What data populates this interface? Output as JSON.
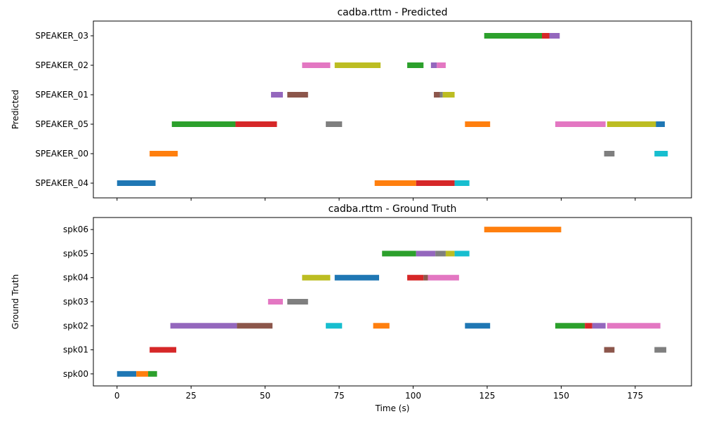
{
  "chart_data": [
    {
      "type": "bar",
      "orientation": "horizontal-timeline",
      "title": "cadba.rttm - Predicted",
      "xlabel": "",
      "ylabel": "Predicted",
      "xlim": [
        -8,
        194
      ],
      "xticks": [
        0,
        25,
        50,
        75,
        100,
        125,
        150,
        175
      ],
      "show_x_tick_labels": false,
      "categories": [
        "SPEAKER_04",
        "SPEAKER_00",
        "SPEAKER_05",
        "SPEAKER_01",
        "SPEAKER_02",
        "SPEAKER_03"
      ],
      "segments": [
        {
          "speaker": "SPEAKER_04",
          "start": 0.0,
          "end": 13.0,
          "color": "#1f77b4"
        },
        {
          "speaker": "SPEAKER_00",
          "start": 11.0,
          "end": 20.5,
          "color": "#ff7f0e"
        },
        {
          "speaker": "SPEAKER_05",
          "start": 18.5,
          "end": 40.0,
          "color": "#2ca02c"
        },
        {
          "speaker": "SPEAKER_05",
          "start": 40.0,
          "end": 54.0,
          "color": "#d62728"
        },
        {
          "speaker": "SPEAKER_01",
          "start": 52.0,
          "end": 56.0,
          "color": "#9467bd"
        },
        {
          "speaker": "SPEAKER_01",
          "start": 57.5,
          "end": 64.5,
          "color": "#8c564b"
        },
        {
          "speaker": "SPEAKER_02",
          "start": 62.5,
          "end": 72.0,
          "color": "#e377c2"
        },
        {
          "speaker": "SPEAKER_05",
          "start": 70.5,
          "end": 76.0,
          "color": "#7f7f7f"
        },
        {
          "speaker": "SPEAKER_02",
          "start": 73.5,
          "end": 89.0,
          "color": "#bcbd22"
        },
        {
          "speaker": "SPEAKER_04",
          "start": 87.0,
          "end": 101.0,
          "color": "#ff7f0e"
        },
        {
          "speaker": "SPEAKER_02",
          "start": 98.0,
          "end": 103.5,
          "color": "#2ca02c"
        },
        {
          "speaker": "SPEAKER_04",
          "start": 101.0,
          "end": 114.0,
          "color": "#d62728"
        },
        {
          "speaker": "SPEAKER_02",
          "start": 106.0,
          "end": 108.0,
          "color": "#9467bd"
        },
        {
          "speaker": "SPEAKER_01",
          "start": 107.0,
          "end": 109.0,
          "color": "#8c564b"
        },
        {
          "speaker": "SPEAKER_02",
          "start": 108.0,
          "end": 111.0,
          "color": "#e377c2"
        },
        {
          "speaker": "SPEAKER_01",
          "start": 109.0,
          "end": 110.0,
          "color": "#7f7f7f"
        },
        {
          "speaker": "SPEAKER_01",
          "start": 110.0,
          "end": 114.0,
          "color": "#bcbd22"
        },
        {
          "speaker": "SPEAKER_04",
          "start": 114.0,
          "end": 119.0,
          "color": "#17becf"
        },
        {
          "speaker": "SPEAKER_05",
          "start": 117.5,
          "end": 126.0,
          "color": "#ff7f0e"
        },
        {
          "speaker": "SPEAKER_03",
          "start": 124.0,
          "end": 144.0,
          "color": "#2ca02c"
        },
        {
          "speaker": "SPEAKER_03",
          "start": 143.5,
          "end": 146.5,
          "color": "#d62728"
        },
        {
          "speaker": "SPEAKER_03",
          "start": 146.0,
          "end": 149.5,
          "color": "#9467bd"
        },
        {
          "speaker": "SPEAKER_05",
          "start": 148.0,
          "end": 165.0,
          "color": "#e377c2"
        },
        {
          "speaker": "SPEAKER_00",
          "start": 164.5,
          "end": 168.0,
          "color": "#7f7f7f"
        },
        {
          "speaker": "SPEAKER_05",
          "start": 165.5,
          "end": 182.5,
          "color": "#bcbd22"
        },
        {
          "speaker": "SPEAKER_05",
          "start": 182.0,
          "end": 185.0,
          "color": "#1f77b4"
        },
        {
          "speaker": "SPEAKER_00",
          "start": 181.5,
          "end": 186.0,
          "color": "#17becf"
        }
      ]
    },
    {
      "type": "bar",
      "orientation": "horizontal-timeline",
      "title": "cadba.rttm - Ground Truth",
      "xlabel": "Time (s)",
      "ylabel": "Ground Truth",
      "xlim": [
        -8,
        194
      ],
      "xticks": [
        0,
        25,
        50,
        75,
        100,
        125,
        150,
        175
      ],
      "show_x_tick_labels": true,
      "categories": [
        "spk00",
        "spk01",
        "spk02",
        "spk03",
        "spk04",
        "spk05",
        "spk06"
      ],
      "segments": [
        {
          "speaker": "spk00",
          "start": 0.0,
          "end": 6.5,
          "color": "#1f77b4"
        },
        {
          "speaker": "spk00",
          "start": 6.5,
          "end": 10.5,
          "color": "#ff7f0e"
        },
        {
          "speaker": "spk00",
          "start": 10.5,
          "end": 13.5,
          "color": "#2ca02c"
        },
        {
          "speaker": "spk01",
          "start": 11.0,
          "end": 20.0,
          "color": "#d62728"
        },
        {
          "speaker": "spk02",
          "start": 18.0,
          "end": 40.5,
          "color": "#9467bd"
        },
        {
          "speaker": "spk02",
          "start": 40.5,
          "end": 52.5,
          "color": "#8c564b"
        },
        {
          "speaker": "spk03",
          "start": 51.0,
          "end": 56.0,
          "color": "#e377c2"
        },
        {
          "speaker": "spk03",
          "start": 57.5,
          "end": 64.5,
          "color": "#7f7f7f"
        },
        {
          "speaker": "spk04",
          "start": 62.5,
          "end": 72.0,
          "color": "#bcbd22"
        },
        {
          "speaker": "spk02",
          "start": 70.5,
          "end": 76.0,
          "color": "#17becf"
        },
        {
          "speaker": "spk04",
          "start": 73.5,
          "end": 88.5,
          "color": "#1f77b4"
        },
        {
          "speaker": "spk02",
          "start": 86.5,
          "end": 92.0,
          "color": "#ff7f0e"
        },
        {
          "speaker": "spk05",
          "start": 89.5,
          "end": 101.0,
          "color": "#2ca02c"
        },
        {
          "speaker": "spk04",
          "start": 98.0,
          "end": 103.5,
          "color": "#d62728"
        },
        {
          "speaker": "spk05",
          "start": 101.0,
          "end": 107.5,
          "color": "#9467bd"
        },
        {
          "speaker": "spk04",
          "start": 103.5,
          "end": 105.0,
          "color": "#8c564b"
        },
        {
          "speaker": "spk04",
          "start": 105.0,
          "end": 115.5,
          "color": "#e377c2"
        },
        {
          "speaker": "spk05",
          "start": 107.5,
          "end": 111.0,
          "color": "#7f7f7f"
        },
        {
          "speaker": "spk05",
          "start": 111.0,
          "end": 114.0,
          "color": "#bcbd22"
        },
        {
          "speaker": "spk05",
          "start": 114.0,
          "end": 119.0,
          "color": "#17becf"
        },
        {
          "speaker": "spk02",
          "start": 117.5,
          "end": 126.0,
          "color": "#1f77b4"
        },
        {
          "speaker": "spk06",
          "start": 124.0,
          "end": 150.0,
          "color": "#ff7f0e"
        },
        {
          "speaker": "spk02",
          "start": 148.0,
          "end": 158.0,
          "color": "#2ca02c"
        },
        {
          "speaker": "spk02",
          "start": 158.0,
          "end": 160.5,
          "color": "#d62728"
        },
        {
          "speaker": "spk02",
          "start": 160.5,
          "end": 165.0,
          "color": "#9467bd"
        },
        {
          "speaker": "spk01",
          "start": 164.5,
          "end": 168.0,
          "color": "#8c564b"
        },
        {
          "speaker": "spk02",
          "start": 165.5,
          "end": 183.5,
          "color": "#e377c2"
        },
        {
          "speaker": "spk01",
          "start": 181.5,
          "end": 185.5,
          "color": "#7f7f7f"
        }
      ]
    }
  ]
}
